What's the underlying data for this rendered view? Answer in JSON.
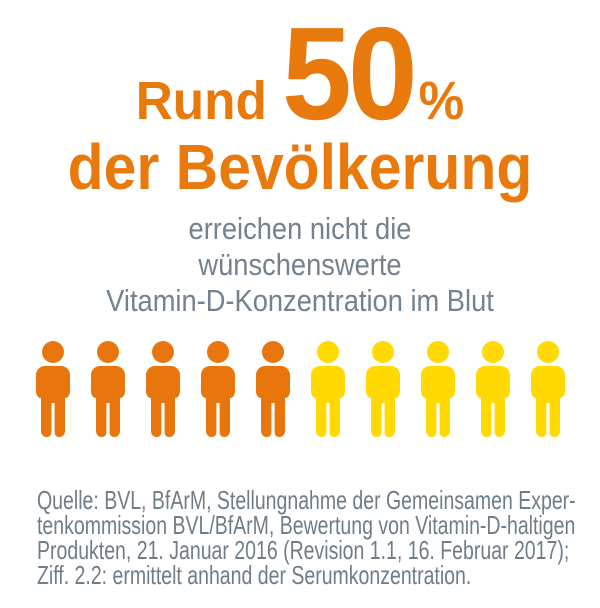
{
  "headline": {
    "prefix": "Rund",
    "value": "50",
    "unit": "%",
    "line2": "der Bevölkerung"
  },
  "subtitle_lines": [
    "erreichen nicht die",
    "wünschenswerte",
    "Vitamin-D-Konzentration im Blut"
  ],
  "source_lines": [
    "Quelle: BVL, BfArM, Stellungnahme der Gemeinsamen Exper-",
    "tenkommission BVL/BfArM, Bewertung von Vitamin-D-haltigen",
    "Produkten, 21. Januar 2016 (Revision 1.1, 16. Februar 2017);",
    "Ziff. 2.2: ermittelt anhand der Serumkonzentration."
  ],
  "colors": {
    "background": "#FFFFFF",
    "headline_orange": "#E8790C",
    "person_orange": "#E8760D",
    "person_yellow": "#FFD900",
    "subtitle_gray": "#74828F",
    "source_gray": "#6F7D89"
  },
  "chart_data": {
    "type": "pictograph",
    "title": "Rund 50% der Bevölkerung erreichen nicht die wünschenswerte Vitamin-D-Konzentration im Blut",
    "value_percent": 50,
    "total_icons": 10,
    "highlighted_icons": 5,
    "highlight_color": "#E8760D",
    "remainder_color": "#FFD900",
    "source": "Quelle: BVL, BfArM, Stellungnahme der Gemeinsamen Expertenkommission BVL/BfArM, Bewertung von Vitamin-D-haltigen Produkten, 21. Januar 2016 (Revision 1.1, 16. Februar 2017); Ziff. 2.2: ermittelt anhand der Serumkonzentration."
  }
}
